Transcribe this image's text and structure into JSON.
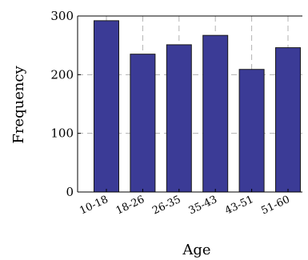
{
  "chart_data": {
    "type": "bar",
    "title": "",
    "xlabel": "Age",
    "ylabel": "Frequency",
    "categories": [
      "10-18",
      "18-26",
      "26-35",
      "35-43",
      "43-51",
      "51-60"
    ],
    "values": [
      292,
      235,
      251,
      267,
      209,
      246
    ],
    "ylim": [
      0,
      300
    ],
    "yticks": [
      0,
      100,
      200,
      300
    ],
    "ytick_labels": [
      "0",
      "100",
      "200",
      "300"
    ],
    "grid": true,
    "bar_color": "#3b3b96",
    "bar_edge_color": "#1a1a1a"
  }
}
